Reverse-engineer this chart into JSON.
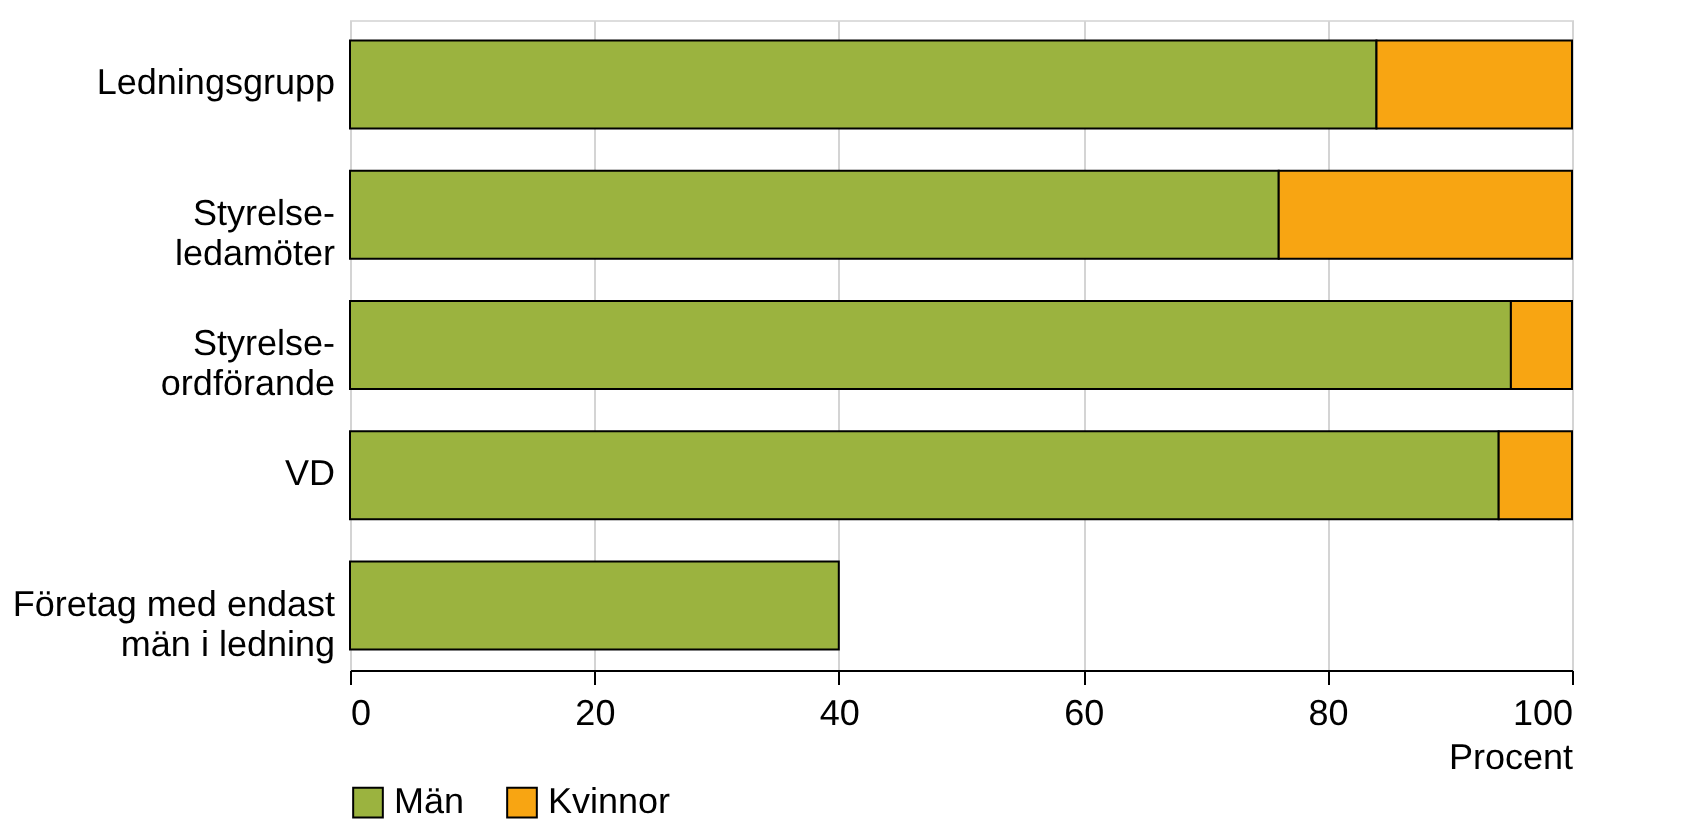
{
  "chart_data": {
    "type": "bar",
    "orientation": "horizontal",
    "stacked": true,
    "categories": [
      "Ledningsgrupp",
      "Styrelse-\nledamöter",
      "Styrelse-\nordförande",
      "VD",
      "Företag med endast\nmän i ledning"
    ],
    "series": [
      {
        "name": "Män",
        "color": "#9bb33f",
        "values": [
          84,
          76,
          95,
          94,
          40
        ]
      },
      {
        "name": "Kvinnor",
        "color": "#f8a512",
        "values": [
          16,
          24,
          5,
          6,
          null
        ]
      }
    ],
    "xlabel": "Procent",
    "xlim": [
      0,
      100
    ],
    "xticks": [
      0,
      20,
      40,
      60,
      80,
      100
    ],
    "grid": "x",
    "legend": "bottom"
  }
}
